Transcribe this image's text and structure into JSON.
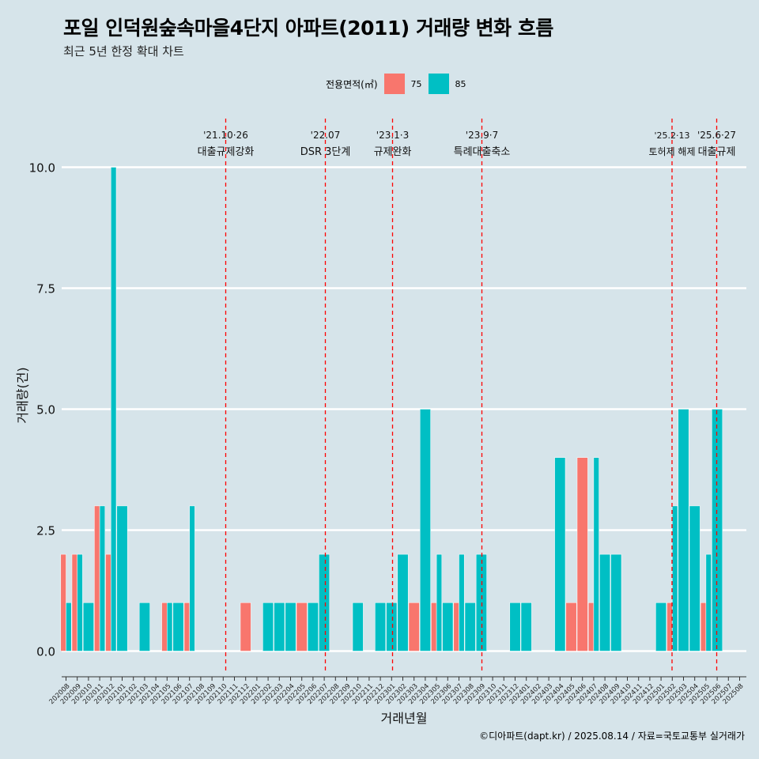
{
  "title": "포일 인덕원숲속마을4단지 아파트(2011) 거래량 변화 흐름",
  "subtitle": "최근 5년 한정 확대 차트",
  "legend": {
    "title": "전용면적(㎡)",
    "items": [
      {
        "label": "75",
        "color": "#f8766d"
      },
      {
        "label": "85",
        "color": "#00bfc4"
      }
    ]
  },
  "caption": "©디아파트(dapt.kr) / 2025.08.14 / 자료=국토교통부 실거래가",
  "chart_data": {
    "type": "bar",
    "xlabel": "거래년월",
    "ylabel": "거래량(건)",
    "ylim": [
      0,
      10
    ],
    "yticks": [
      0.0,
      2.5,
      5.0,
      7.5,
      10.0
    ],
    "ytick_labels": [
      "0.0",
      "2.5",
      "5.0",
      "7.5",
      "10.0"
    ],
    "categories": [
      "202008",
      "202009",
      "202010",
      "202011",
      "202012",
      "202101",
      "202102",
      "202103",
      "202104",
      "202105",
      "202106",
      "202107",
      "202108",
      "202109",
      "202110",
      "202111",
      "202112",
      "202201",
      "202202",
      "202203",
      "202204",
      "202205",
      "202206",
      "202207",
      "202208",
      "202209",
      "202210",
      "202211",
      "202212",
      "202301",
      "202302",
      "202303",
      "202304",
      "202305",
      "202306",
      "202307",
      "202308",
      "202309",
      "202310",
      "202311",
      "202312",
      "202401",
      "202402",
      "202403",
      "202404",
      "202405",
      "202406",
      "202407",
      "202408",
      "202409",
      "202410",
      "202411",
      "202412",
      "202501",
      "202502",
      "202503",
      "202504",
      "202505",
      "202506",
      "202507",
      "202508"
    ],
    "series": [
      {
        "name": "75",
        "color": "#f8766d",
        "values": [
          2,
          2,
          0,
          3,
          2,
          0,
          0,
          0,
          0,
          1,
          0,
          1,
          0,
          0,
          0,
          0,
          1,
          0,
          0,
          0,
          0,
          1,
          0,
          0,
          0,
          0,
          0,
          0,
          0,
          0,
          0,
          1,
          0,
          1,
          0,
          1,
          0,
          0,
          0,
          0,
          0,
          0,
          0,
          0,
          0,
          1,
          4,
          1,
          0,
          0,
          0,
          0,
          0,
          0,
          1,
          0,
          0,
          1,
          0,
          0,
          0
        ]
      },
      {
        "name": "85",
        "color": "#00bfc4",
        "values": [
          1,
          2,
          1,
          3,
          10,
          3,
          0,
          1,
          0,
          1,
          1,
          3,
          0,
          0,
          0,
          0,
          0,
          0,
          1,
          1,
          1,
          0,
          1,
          2,
          0,
          0,
          1,
          0,
          1,
          1,
          2,
          0,
          5,
          2,
          1,
          2,
          1,
          2,
          0,
          0,
          1,
          1,
          0,
          0,
          4,
          0,
          0,
          4,
          2,
          2,
          0,
          0,
          0,
          1,
          3,
          5,
          3,
          2,
          5,
          0,
          0
        ]
      }
    ],
    "events": [
      {
        "date_label": "'21.10·26",
        "text": "대출규제강화",
        "after_category": "202110"
      },
      {
        "date_label": "'22.07",
        "text": "DSR 3단계",
        "after_category": "202207"
      },
      {
        "date_label": "'23.1·3",
        "text": "규제완화",
        "after_category": "202301"
      },
      {
        "date_label": "'23.9·7",
        "text": "특례대출축소",
        "after_category": "202309"
      },
      {
        "date_label": "'25.2·13",
        "text": "토허제 해제",
        "after_category": "202502"
      },
      {
        "date_label": "'25.6·27",
        "text": "대출규제",
        "after_category": "202506"
      }
    ]
  }
}
